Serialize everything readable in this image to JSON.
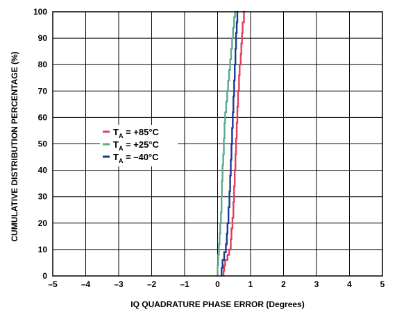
{
  "chart_data": {
    "type": "line",
    "xlabel": "IQ QUADRATURE PHASE ERROR (Degrees)",
    "ylabel": "CUMULATIVE DISTRIBUTION PERCENTAGE (%)",
    "xlim": [
      -5,
      5
    ],
    "ylim": [
      0,
      100
    ],
    "x_ticks": [
      "–5",
      "–4",
      "–3",
      "–2",
      "–1",
      "0",
      "1",
      "2",
      "3",
      "4",
      "5"
    ],
    "y_ticks": [
      "0",
      "10",
      "20",
      "30",
      "40",
      "50",
      "60",
      "70",
      "80",
      "90",
      "100"
    ],
    "grid": true,
    "legend_position": "center-left",
    "series": [
      {
        "name_prefix": "T",
        "name_sub": "A",
        "name_suffix": " = +85°C",
        "color": "#e03c5a",
        "points": [
          [
            0.18,
            0
          ],
          [
            0.2,
            2
          ],
          [
            0.23,
            4
          ],
          [
            0.3,
            6
          ],
          [
            0.35,
            8
          ],
          [
            0.4,
            10
          ],
          [
            0.42,
            14
          ],
          [
            0.45,
            18
          ],
          [
            0.48,
            22
          ],
          [
            0.5,
            28
          ],
          [
            0.52,
            34
          ],
          [
            0.54,
            40
          ],
          [
            0.56,
            46
          ],
          [
            0.58,
            52
          ],
          [
            0.6,
            58
          ],
          [
            0.62,
            64
          ],
          [
            0.65,
            70
          ],
          [
            0.67,
            76
          ],
          [
            0.7,
            80
          ],
          [
            0.72,
            84
          ],
          [
            0.74,
            88
          ],
          [
            0.76,
            92
          ],
          [
            0.8,
            96
          ],
          [
            0.84,
            100
          ]
        ]
      },
      {
        "name_prefix": "T",
        "name_sub": "A",
        "name_suffix": " = +25°C",
        "color": "#5aaa8c",
        "points": [
          [
            0.0,
            0
          ],
          [
            0.02,
            4
          ],
          [
            0.04,
            8
          ],
          [
            0.06,
            12
          ],
          [
            0.08,
            16
          ],
          [
            0.1,
            20
          ],
          [
            0.12,
            24
          ],
          [
            0.13,
            30
          ],
          [
            0.15,
            36
          ],
          [
            0.17,
            42
          ],
          [
            0.19,
            46
          ],
          [
            0.21,
            52
          ],
          [
            0.23,
            58
          ],
          [
            0.26,
            62
          ],
          [
            0.29,
            66
          ],
          [
            0.32,
            70
          ],
          [
            0.35,
            74
          ],
          [
            0.38,
            78
          ],
          [
            0.41,
            82
          ],
          [
            0.44,
            86
          ],
          [
            0.47,
            90
          ],
          [
            0.5,
            94
          ],
          [
            0.53,
            98
          ],
          [
            0.55,
            100
          ]
        ]
      },
      {
        "name_prefix": "T",
        "name_sub": "A",
        "name_suffix": " = –40°C",
        "color": "#1a3a8c",
        "points": [
          [
            0.12,
            0
          ],
          [
            0.15,
            3
          ],
          [
            0.2,
            6
          ],
          [
            0.25,
            9
          ],
          [
            0.28,
            12
          ],
          [
            0.3,
            16
          ],
          [
            0.33,
            20
          ],
          [
            0.36,
            26
          ],
          [
            0.38,
            32
          ],
          [
            0.4,
            38
          ],
          [
            0.42,
            44
          ],
          [
            0.44,
            50
          ],
          [
            0.46,
            56
          ],
          [
            0.48,
            62
          ],
          [
            0.5,
            68
          ],
          [
            0.52,
            74
          ],
          [
            0.54,
            80
          ],
          [
            0.56,
            86
          ],
          [
            0.58,
            92
          ],
          [
            0.6,
            96
          ],
          [
            0.62,
            100
          ]
        ]
      }
    ]
  }
}
